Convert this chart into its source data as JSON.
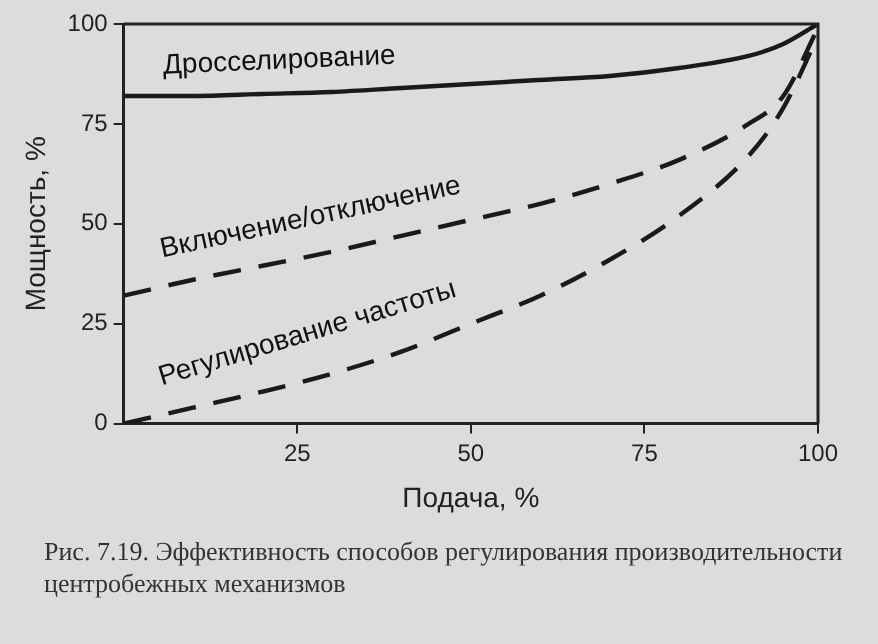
{
  "chart_data": {
    "type": "line",
    "xlabel": "Подача, %",
    "ylabel": "Мощность, %",
    "x": [
      0,
      10,
      20,
      30,
      40,
      50,
      60,
      70,
      80,
      90,
      95,
      100
    ],
    "xlim": [
      0,
      100
    ],
    "xticks": [
      25,
      50,
      75,
      100
    ],
    "ylim": [
      0,
      100
    ],
    "yticks": [
      0,
      25,
      50,
      75,
      100
    ],
    "grid": false,
    "legend": false,
    "marker": "none",
    "series": [
      {
        "name": "Дросселирование",
        "color": "#1a1a1a",
        "line_style": "solid",
        "values": [
          82,
          82,
          82.5,
          83,
          84,
          85,
          86,
          87,
          89,
          92,
          95,
          100
        ]
      },
      {
        "name": "Включение/отключение",
        "color": "#1a1a1a",
        "line_style": "dashed",
        "values": [
          32,
          36,
          39.5,
          43,
          47,
          51,
          55,
          60,
          66,
          75,
          82,
          99
        ]
      },
      {
        "name": "Регулирование частоты",
        "color": "#1a1a1a",
        "line_style": "dashed",
        "values": [
          0,
          4,
          8,
          12.5,
          18,
          25,
          32,
          41,
          52,
          67,
          79,
          97
        ]
      }
    ],
    "annotations": [
      "Рис. 7.19. Эффективность способов регулирования производительности центробежных механизмов"
    ]
  }
}
